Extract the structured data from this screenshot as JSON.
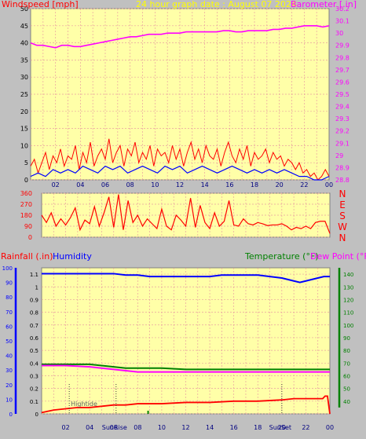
{
  "header": {
    "left_title": "Windspeed [mph]",
    "center_title": "24 hour graph date : August 07 2024",
    "right_title": "Barometer [.in]"
  },
  "colors": {
    "background": "#c0c0c0",
    "plot": "#ffffa8",
    "grid": "#e8a0a0",
    "wind": "#ff0000",
    "gust": "#ff0000",
    "wind_avg": "#0000ff",
    "wind_green": "#008000",
    "barometer": "#ff00ff",
    "direction": "#ff0000",
    "humidity": "#0000ff",
    "temperature": "#008000",
    "dewpoint": "#ff00ff",
    "rainfall": "#ff0000",
    "title_yellow": "#ffff00",
    "hour_labels": "#000080",
    "right_axis": "#ff00ff",
    "temp_axis": "#008000"
  },
  "x_axis": {
    "hour_labels": [
      "02",
      "04",
      "06",
      "08",
      "10",
      "12",
      "14",
      "16",
      "18",
      "20",
      "22",
      "00"
    ]
  },
  "bottom_panel": {
    "rain_title": "Rainfall (.in)",
    "humidity_title": "Humidity",
    "temp_title": "Temperature (°F)",
    "dew_title": "Dew Point (°F)",
    "sun_markers": [
      {
        "label": "Hightide",
        "hour": 2.3
      },
      {
        "label": "SunRise",
        "hour": 6.2
      },
      {
        "label": "SunSet",
        "hour": 20.0
      }
    ],
    "small_label": "Su"
  },
  "chart_data": [
    {
      "type": "line",
      "title": "Windspeed [mph]",
      "subtitle": "24 hour graph date : August 07 2024",
      "x_range_hours": [
        0,
        24
      ],
      "y_left": {
        "label": "Windspeed [mph]",
        "ticks": [
          0,
          5,
          10,
          15,
          20,
          25,
          30,
          35,
          40,
          45,
          50
        ],
        "range": [
          0,
          50
        ]
      },
      "y_right": {
        "label": "Barometer [.in]",
        "ticks": [
          "28.8",
          "28.9",
          "29",
          "29.1",
          "29.2",
          "29.3",
          "29.4",
          "29.5",
          "29.6",
          "29.7",
          "29.8",
          "29.9",
          "30",
          "30.1",
          "30.2"
        ],
        "range": [
          28.8,
          30.2
        ]
      },
      "series": [
        {
          "name": "Barometer",
          "axis": "right",
          "x": [
            0,
            0.5,
            1,
            1.5,
            2,
            2.5,
            3,
            3.5,
            4,
            4.5,
            5,
            5.5,
            6,
            6.5,
            7,
            7.5,
            8,
            8.5,
            9,
            9.5,
            10,
            10.5,
            11,
            11.5,
            12,
            12.5,
            13,
            13.5,
            14,
            14.5,
            15,
            15.5,
            16,
            16.5,
            17,
            17.5,
            18,
            18.5,
            19,
            19.5,
            20,
            20.5,
            21,
            21.5,
            22,
            22.5,
            23,
            23.5,
            24
          ],
          "values": [
            29.92,
            29.9,
            29.9,
            29.89,
            29.88,
            29.9,
            29.9,
            29.89,
            29.89,
            29.9,
            29.91,
            29.92,
            29.93,
            29.94,
            29.95,
            29.96,
            29.97,
            29.97,
            29.98,
            29.99,
            29.99,
            29.99,
            30.0,
            30.0,
            30.0,
            30.01,
            30.01,
            30.01,
            30.01,
            30.01,
            30.01,
            30.02,
            30.02,
            30.01,
            30.01,
            30.02,
            30.02,
            30.02,
            30.02,
            30.03,
            30.03,
            30.04,
            30.04,
            30.05,
            30.06,
            30.06,
            30.06,
            30.05,
            30.06
          ]
        },
        {
          "name": "Wind gust",
          "axis": "left",
          "x": [
            0,
            0.3,
            0.6,
            0.9,
            1.2,
            1.5,
            1.8,
            2.1,
            2.4,
            2.7,
            3.0,
            3.3,
            3.6,
            3.9,
            4.2,
            4.5,
            4.8,
            5.1,
            5.4,
            5.7,
            6.0,
            6.3,
            6.6,
            6.9,
            7.2,
            7.5,
            7.8,
            8.1,
            8.4,
            8.7,
            9.0,
            9.3,
            9.6,
            9.9,
            10.2,
            10.5,
            10.8,
            11.1,
            11.4,
            11.7,
            12.0,
            12.3,
            12.6,
            12.9,
            13.2,
            13.5,
            13.8,
            14.1,
            14.4,
            14.7,
            15.0,
            15.3,
            15.6,
            15.9,
            16.2,
            16.5,
            16.8,
            17.1,
            17.4,
            17.7,
            18.0,
            18.3,
            18.6,
            18.9,
            19.2,
            19.5,
            19.8,
            20.1,
            20.4,
            20.7,
            21.0,
            21.3,
            21.6,
            21.9,
            22.2,
            22.5,
            22.8,
            23.1,
            23.4,
            23.7,
            24.0
          ],
          "values": [
            4,
            6,
            2,
            5,
            8,
            3,
            7,
            5,
            9,
            4,
            7,
            6,
            10,
            3,
            8,
            5,
            11,
            4,
            7,
            9,
            6,
            12,
            5,
            8,
            10,
            4,
            9,
            7,
            11,
            5,
            8,
            6,
            10,
            4,
            9,
            7,
            8,
            5,
            10,
            6,
            9,
            4,
            8,
            11,
            6,
            9,
            5,
            10,
            7,
            6,
            9,
            4,
            8,
            11,
            7,
            5,
            9,
            6,
            10,
            4,
            8,
            6,
            7,
            9,
            5,
            8,
            6,
            7,
            4,
            6,
            5,
            3,
            5,
            2,
            3,
            1,
            2,
            0,
            1,
            3,
            1
          ]
        },
        {
          "name": "Wind speed",
          "axis": "left",
          "x": [
            0,
            0.6,
            1.2,
            1.8,
            2.4,
            3.0,
            3.6,
            4.2,
            4.8,
            5.4,
            6.0,
            6.6,
            7.2,
            7.8,
            8.4,
            9.0,
            9.6,
            10.2,
            10.8,
            11.4,
            12.0,
            12.6,
            13.2,
            13.8,
            14.4,
            15.0,
            15.6,
            16.2,
            16.8,
            17.4,
            18.0,
            18.6,
            19.2,
            19.8,
            20.4,
            21.0,
            21.6,
            22.2,
            22.8,
            23.4,
            24.0
          ],
          "values": [
            1,
            2,
            1,
            3,
            2,
            3,
            2,
            4,
            3,
            2,
            4,
            3,
            4,
            2,
            3,
            4,
            3,
            2,
            4,
            3,
            4,
            2,
            3,
            4,
            3,
            2,
            3,
            4,
            3,
            2,
            3,
            2,
            3,
            2,
            3,
            2,
            1,
            1,
            0,
            0,
            1
          ]
        }
      ]
    },
    {
      "type": "scatter",
      "title": "Wind direction",
      "y_left": {
        "ticks": [
          0,
          90,
          180,
          270,
          360
        ],
        "range": [
          0,
          360
        ]
      },
      "y_right": {
        "labels": [
          "N",
          "W",
          "S",
          "E",
          "N"
        ]
      },
      "series": [
        {
          "name": "Direction",
          "x": [
            0,
            0.4,
            0.8,
            1.2,
            1.6,
            2.0,
            2.4,
            2.8,
            3.2,
            3.6,
            4.0,
            4.4,
            4.8,
            5.2,
            5.6,
            6.0,
            6.4,
            6.8,
            7.2,
            7.6,
            8.0,
            8.4,
            8.8,
            9.2,
            9.6,
            10.0,
            10.4,
            10.8,
            11.2,
            11.6,
            12.0,
            12.4,
            12.8,
            13.2,
            13.6,
            14.0,
            14.4,
            14.8,
            15.2,
            15.6,
            16.0,
            16.4,
            16.8,
            17.2,
            17.6,
            18.0,
            18.4,
            18.8,
            19.2,
            19.6,
            20.0,
            20.4,
            20.8,
            21.2,
            21.6,
            22.0,
            22.4,
            22.8,
            23.2,
            23.6,
            24.0
          ],
          "values": [
            180,
            120,
            200,
            90,
            150,
            100,
            160,
            240,
            60,
            140,
            110,
            250,
            90,
            200,
            330,
            80,
            350,
            60,
            300,
            120,
            180,
            90,
            150,
            110,
            70,
            230,
            90,
            60,
            180,
            140,
            90,
            320,
            80,
            260,
            120,
            70,
            200,
            90,
            130,
            300,
            100,
            90,
            150,
            110,
            100,
            120,
            110,
            95,
            100,
            100,
            110,
            90,
            60,
            80,
            70,
            90,
            70,
            120,
            130,
            130,
            30
          ]
        }
      ]
    },
    {
      "type": "line",
      "title": "Rainfall / Humidity / Temperature / Dew Point",
      "y_left": {
        "label": "Rainfall (.in)",
        "ticks": [
          "0",
          "0.1",
          "0.2",
          "0.3",
          "0.4",
          "0.5",
          "0.6",
          "0.7",
          "0.8",
          "0.9",
          "1",
          "1.1"
        ],
        "range": [
          0,
          1.15
        ]
      },
      "y_humidity": {
        "label": "Humidity",
        "ticks": [
          0,
          10,
          20,
          30,
          40,
          50,
          60,
          70,
          80,
          90,
          100
        ],
        "range": [
          0,
          100
        ]
      },
      "y_right": {
        "label": "Temperature (°F)",
        "ticks": [
          40,
          50,
          60,
          70,
          80,
          90,
          100,
          110,
          120,
          130,
          140
        ],
        "range": [
          30,
          145
        ]
      },
      "series": [
        {
          "name": "Humidity",
          "axis": "humidity",
          "x": [
            0,
            2,
            4,
            6,
            7,
            8,
            9,
            10,
            11,
            12,
            13,
            14,
            15,
            16,
            17,
            18,
            19,
            20,
            21,
            21.5,
            22,
            22.5,
            23,
            23.5,
            24
          ],
          "values": [
            96,
            96,
            96,
            96,
            95,
            95,
            94,
            94,
            94,
            94,
            94,
            94,
            95,
            95,
            95,
            95,
            94,
            93,
            91,
            90,
            91,
            92,
            93,
            94,
            94
          ]
        },
        {
          "name": "Temperature",
          "axis": "right",
          "x": [
            0,
            2,
            4,
            5,
            6,
            7,
            8,
            10,
            12,
            14,
            16,
            18,
            20,
            22,
            24
          ],
          "values": [
            69,
            69,
            69,
            68,
            67,
            66,
            66,
            66,
            65,
            65,
            65,
            65,
            65,
            65,
            65
          ]
        },
        {
          "name": "Dew Point",
          "axis": "right",
          "x": [
            0,
            2,
            4,
            5,
            6,
            7,
            8,
            10,
            12,
            14,
            16,
            18,
            20,
            22,
            24
          ],
          "values": [
            68,
            68,
            67,
            66,
            65,
            64,
            63,
            63,
            63,
            63,
            63,
            63,
            63,
            63,
            63
          ]
        },
        {
          "name": "Rainfall",
          "axis": "left",
          "x": [
            0,
            0.5,
            1,
            2,
            3,
            4,
            5,
            6,
            7,
            8,
            9,
            10,
            12,
            14,
            16,
            18,
            20,
            21,
            22,
            23,
            23.4,
            23.6,
            23.8,
            24
          ],
          "values": [
            0.01,
            0.02,
            0.03,
            0.04,
            0.05,
            0.05,
            0.06,
            0.07,
            0.07,
            0.08,
            0.08,
            0.08,
            0.09,
            0.09,
            0.1,
            0.1,
            0.11,
            0.12,
            0.12,
            0.12,
            0.12,
            0.14,
            0.14,
            0.0
          ]
        }
      ]
    }
  ]
}
